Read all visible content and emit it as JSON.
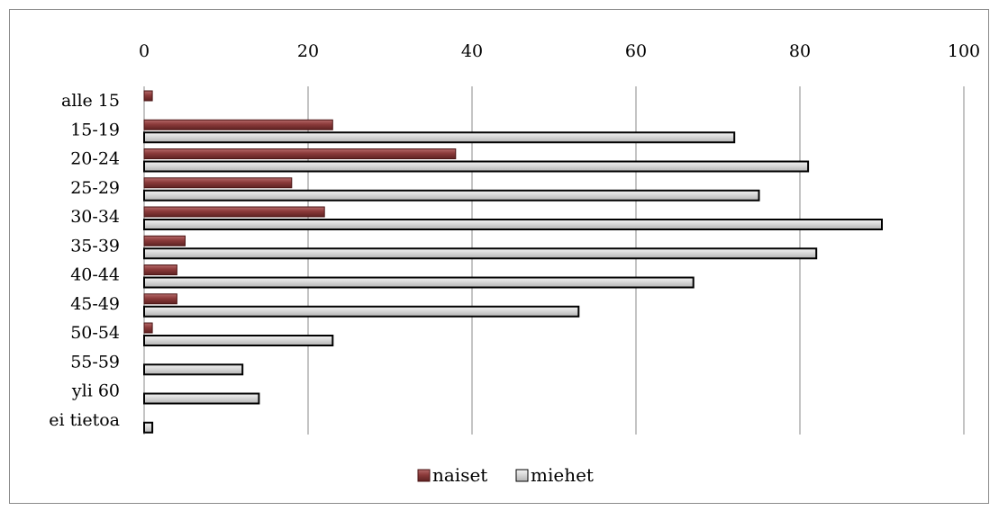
{
  "chart_data": {
    "type": "bar",
    "orientation": "horizontal",
    "categories": [
      "alle 15",
      "15-19",
      "20-24",
      "25-29",
      "30-34",
      "35-39",
      "40-44",
      "45-49",
      "50-54",
      "55-59",
      "yli 60",
      "ei tietoa"
    ],
    "series": [
      {
        "name": "naiset",
        "color": "#8b3a3a",
        "values": [
          1,
          23,
          38,
          18,
          22,
          5,
          4,
          4,
          1,
          0,
          0,
          0
        ]
      },
      {
        "name": "miehet",
        "color": "#d0d0d0",
        "values": [
          0,
          72,
          81,
          75,
          90,
          82,
          67,
          53,
          23,
          12,
          14,
          1
        ]
      }
    ],
    "xlim": [
      0,
      100
    ],
    "xticks": [
      0,
      20,
      40,
      60,
      80,
      100
    ],
    "xaxis_position": "top",
    "grid": true,
    "legend_position": "bottom"
  }
}
